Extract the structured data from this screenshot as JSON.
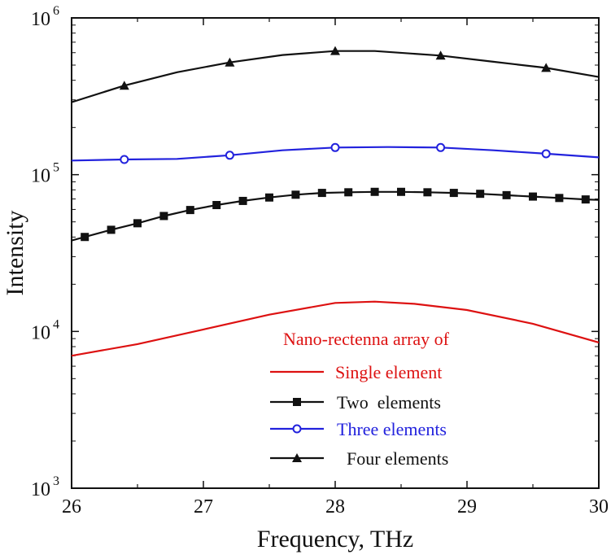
{
  "chart_data": {
    "type": "line",
    "title": "",
    "xlabel": "Frequency, THz",
    "ylabel": "Intensity",
    "xlim": [
      26,
      30
    ],
    "ylim": [
      1000,
      1000000
    ],
    "yscale": "log",
    "x_ticks": [
      26,
      27,
      28,
      29,
      30
    ],
    "x_tick_labels": [
      "26",
      "27",
      "28",
      "29",
      "30"
    ],
    "y_ticks": [
      1000,
      10000,
      100000,
      1000000
    ],
    "y_tick_bases": [
      "10",
      "10",
      "10",
      "10"
    ],
    "y_tick_exponents": [
      "3",
      "4",
      "5",
      "6"
    ],
    "legend": {
      "title": "Nano-rectenna array of",
      "title_color": "#dd1111",
      "placement": "lower-right"
    },
    "series": [
      {
        "name": "Single element",
        "color": "#dd1111",
        "marker": "none",
        "text_color": "#dd1111",
        "x": [
          26.0,
          26.5,
          27.0,
          27.5,
          28.0,
          28.3,
          28.6,
          29.0,
          29.5,
          30.0
        ],
        "values": [
          7000,
          8300,
          10300,
          12800,
          15200,
          15500,
          15000,
          13700,
          11200,
          8500
        ],
        "marker_x": []
      },
      {
        "name": "Two  elements",
        "color": "#111111",
        "marker": "square",
        "text_color": "#111111",
        "x": [
          26.0,
          26.3,
          26.5,
          26.7,
          26.9,
          27.1,
          27.3,
          27.5,
          27.7,
          27.9,
          28.1,
          28.3,
          28.5,
          28.7,
          28.9,
          29.1,
          29.3,
          29.5,
          29.7,
          29.9,
          30.0
        ],
        "values": [
          38000,
          44500,
          49000,
          54500,
          59500,
          64000,
          68000,
          71500,
          74500,
          76500,
          77200,
          77700,
          77700,
          77200,
          76500,
          75500,
          74000,
          72500,
          71000,
          69500,
          69000
        ],
        "marker_x": [
          26.1,
          26.3,
          26.5,
          26.7,
          26.9,
          27.1,
          27.3,
          27.5,
          27.7,
          27.9,
          28.1,
          28.3,
          28.5,
          28.7,
          28.9,
          29.1,
          29.3,
          29.5,
          29.7,
          29.9
        ]
      },
      {
        "name": "Three elements",
        "color": "#2222dd",
        "marker": "circle-open",
        "text_color": "#2222dd",
        "x": [
          26.0,
          26.4,
          26.8,
          27.2,
          27.6,
          28.0,
          28.4,
          28.8,
          29.2,
          29.6,
          30.0
        ],
        "values": [
          123000,
          125000,
          126000,
          133000,
          143000,
          149000,
          150000,
          149000,
          143000,
          136000,
          129000
        ],
        "marker_x": [
          26.4,
          27.2,
          28.0,
          28.8,
          29.6
        ]
      },
      {
        "name": "Four elements",
        "color": "#111111",
        "marker": "triangle",
        "text_color": "#111111",
        "x": [
          26.0,
          26.4,
          26.8,
          27.2,
          27.6,
          28.0,
          28.3,
          28.8,
          29.2,
          29.6,
          30.0
        ],
        "values": [
          290000,
          370000,
          450000,
          520000,
          580000,
          615000,
          615000,
          575000,
          525000,
          480000,
          420000
        ],
        "marker_x": [
          26.4,
          27.2,
          28.0,
          28.8,
          29.6
        ]
      }
    ]
  }
}
